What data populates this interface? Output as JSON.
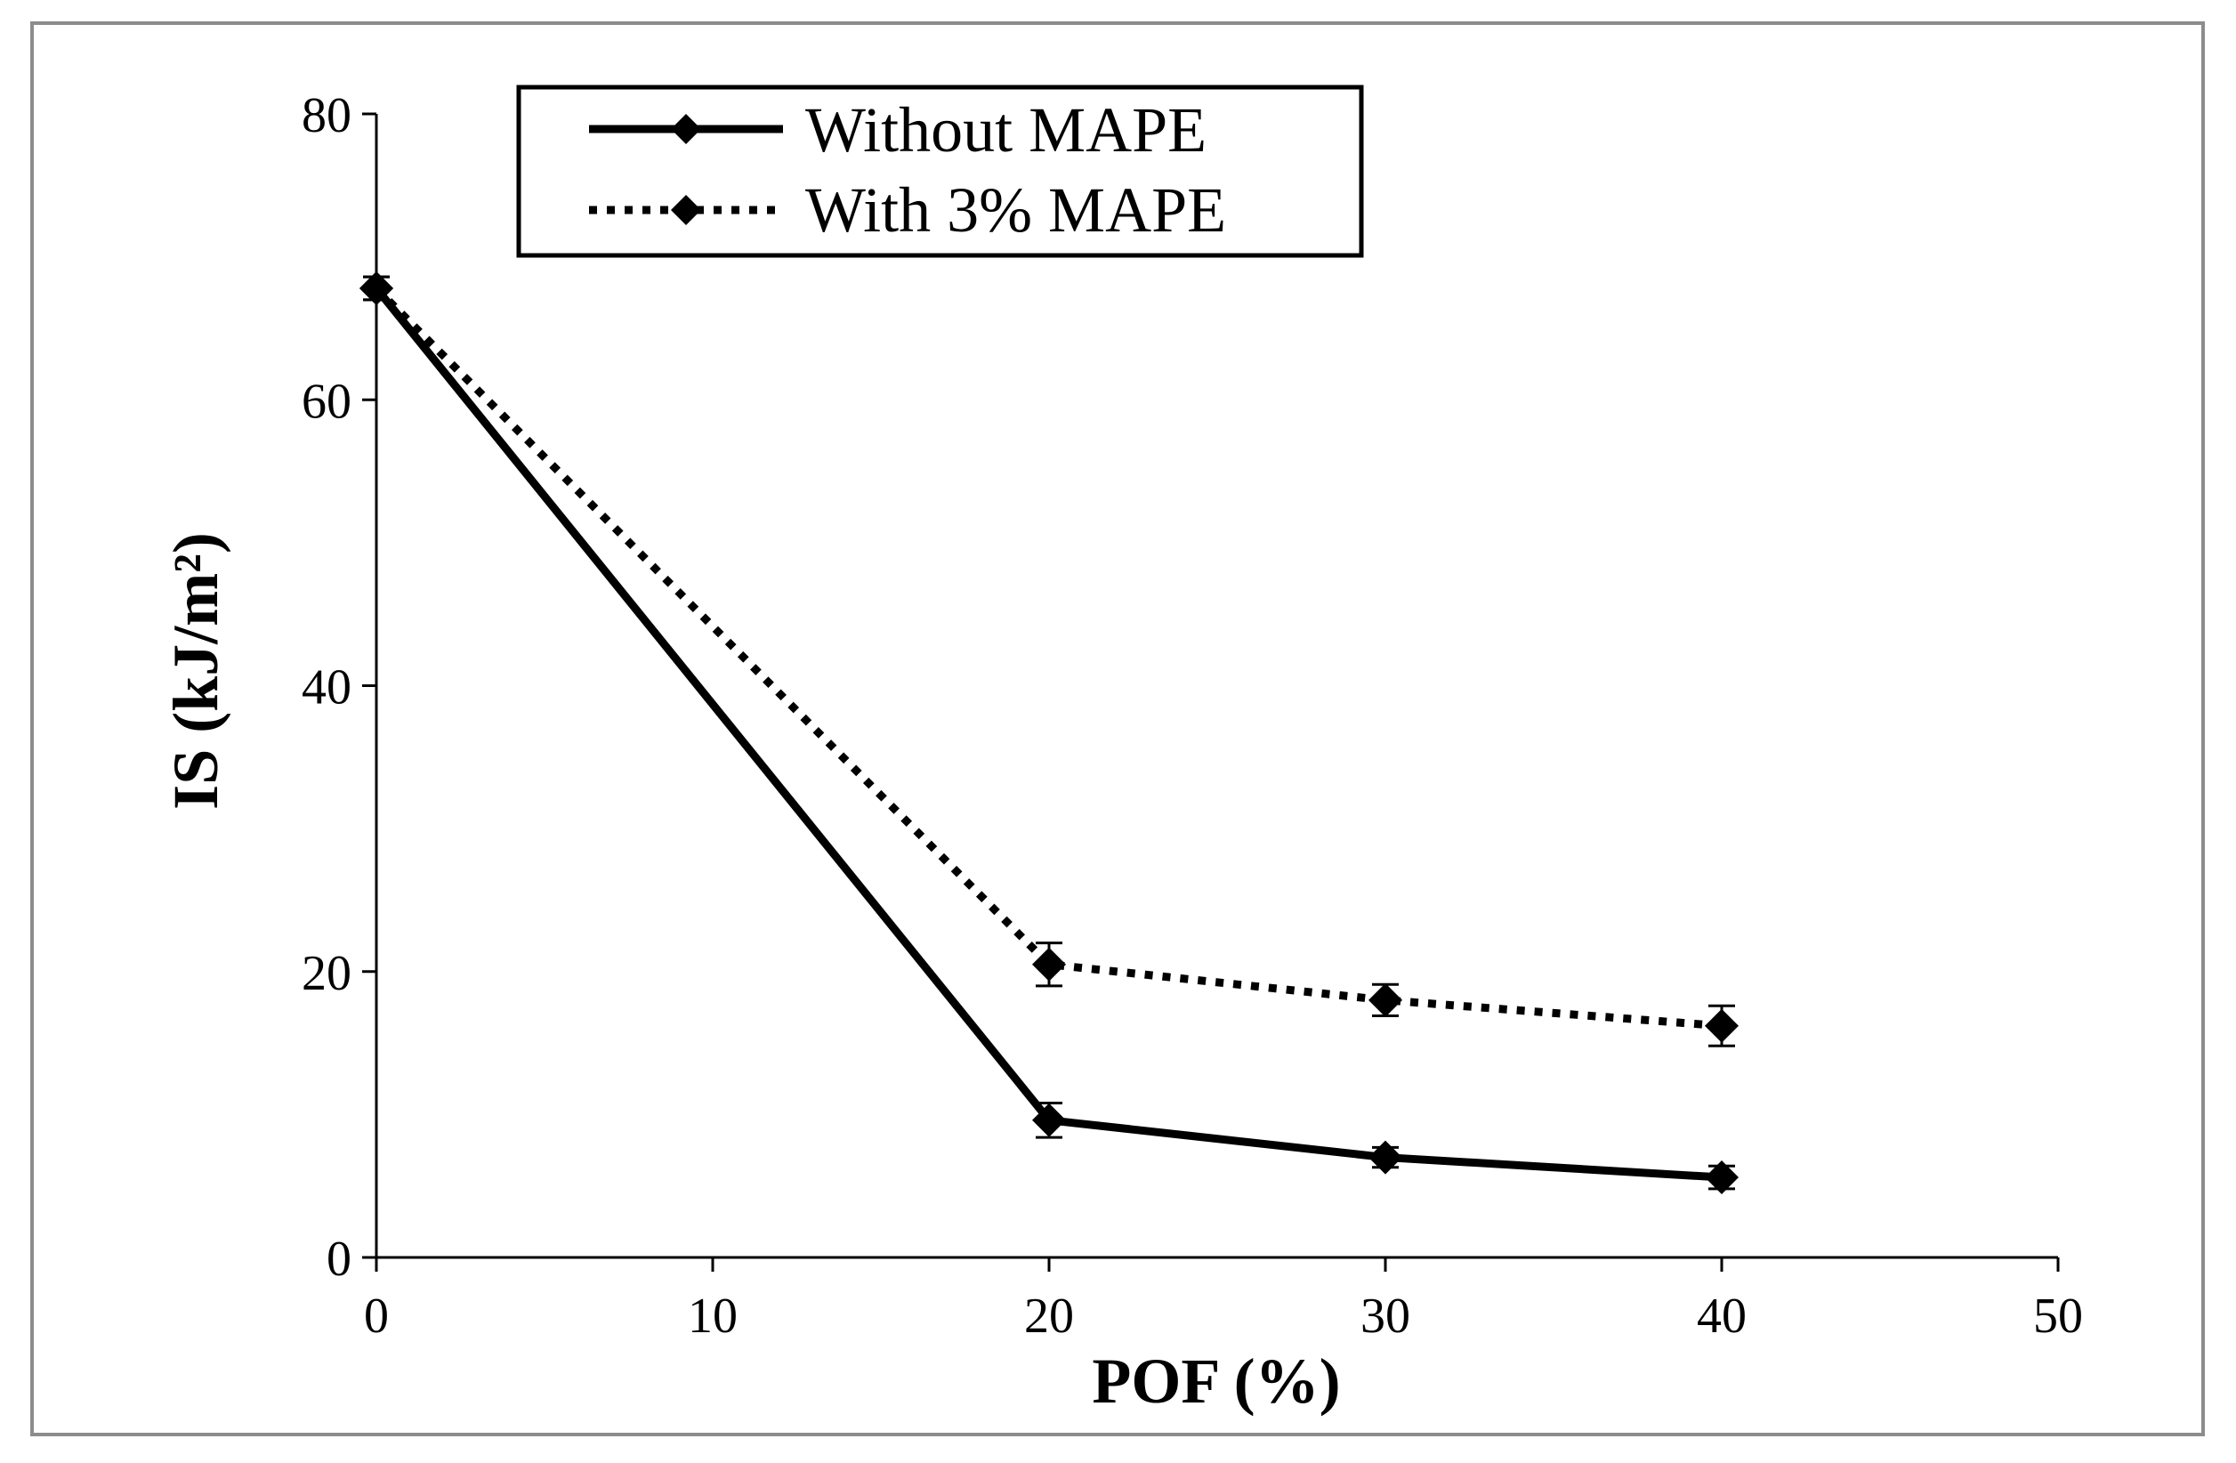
{
  "chart_data": {
    "type": "line",
    "title": "",
    "xlabel": "POF (%)",
    "ylabel": "IS (kJ/m²)",
    "xlim": [
      0,
      50
    ],
    "ylim": [
      0,
      80
    ],
    "xticks": [
      0,
      10,
      20,
      30,
      40,
      50
    ],
    "yticks": [
      0,
      20,
      40,
      60,
      80
    ],
    "grid": false,
    "legend_position": "top-left",
    "series": [
      {
        "name": "Without MAPE",
        "style": "solid",
        "marker": "diamond",
        "x": [
          0,
          20,
          30,
          40
        ],
        "values": [
          67.8,
          9.6,
          7.0,
          5.6
        ],
        "errors": [
          0.8,
          1.2,
          0.7,
          0.8
        ]
      },
      {
        "name": "With 3% MAPE",
        "style": "dotted",
        "marker": "diamond",
        "x": [
          0,
          20,
          30,
          40
        ],
        "values": [
          67.8,
          20.5,
          18.0,
          16.2
        ],
        "errors": [
          0.8,
          1.5,
          1.1,
          1.4
        ]
      }
    ],
    "colors": {
      "line": "#000000",
      "frame": "#8c8c8c"
    }
  }
}
